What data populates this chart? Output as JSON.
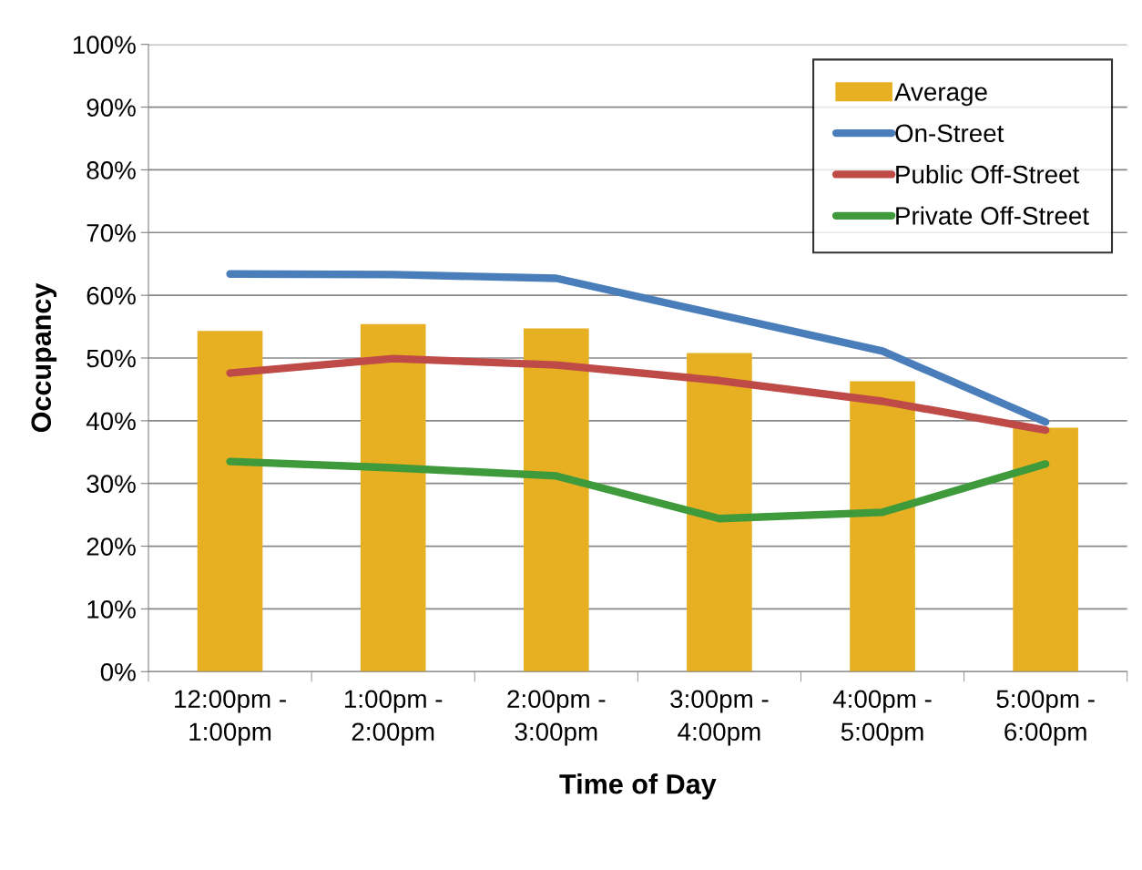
{
  "chart_data": {
    "type": "bar",
    "xlabel": "Time of Day",
    "ylabel": "Occupancy",
    "categories": [
      "12:00pm -\n1:00pm",
      "1:00pm -\n2:00pm",
      "2:00pm -\n3:00pm",
      "3:00pm -\n4:00pm",
      "4:00pm -\n5:00pm",
      "5:00pm -\n6:00pm"
    ],
    "series": [
      {
        "name": "Average",
        "color": "#e6b022",
        "values": [
          54.3,
          55.4,
          54.7,
          50.8,
          46.3,
          38.9
        ]
      },
      {
        "name": "On-Street",
        "type": "line",
        "color": "#4a7ebb",
        "values": [
          63.4,
          63.3,
          62.7,
          56.9,
          51.1,
          39.8
        ]
      },
      {
        "name": "Public Off-Street",
        "type": "line",
        "color": "#be4b48",
        "values": [
          47.6,
          49.9,
          48.9,
          46.4,
          43.1,
          38.5
        ]
      },
      {
        "name": "Private Off-Street",
        "type": "line",
        "color": "#3e9a3b",
        "values": [
          33.5,
          32.5,
          31.2,
          24.4,
          25.4,
          33.1
        ]
      }
    ],
    "ylim": [
      0,
      100
    ],
    "yticks": [
      {
        "value": 0,
        "label": "0%"
      },
      {
        "value": 10,
        "label": "10%"
      },
      {
        "value": 20,
        "label": "20%"
      },
      {
        "value": 30,
        "label": "30%"
      },
      {
        "value": 40,
        "label": "40%"
      },
      {
        "value": 50,
        "label": "50%"
      },
      {
        "value": 60,
        "label": "60%"
      },
      {
        "value": 70,
        "label": "70%"
      },
      {
        "value": 80,
        "label": "80%"
      },
      {
        "value": 90,
        "label": "90%"
      },
      {
        "value": 100,
        "label": "100%"
      }
    ],
    "grid": "y",
    "legend": "top right",
    "marker": "none",
    "line_style": "solid"
  }
}
